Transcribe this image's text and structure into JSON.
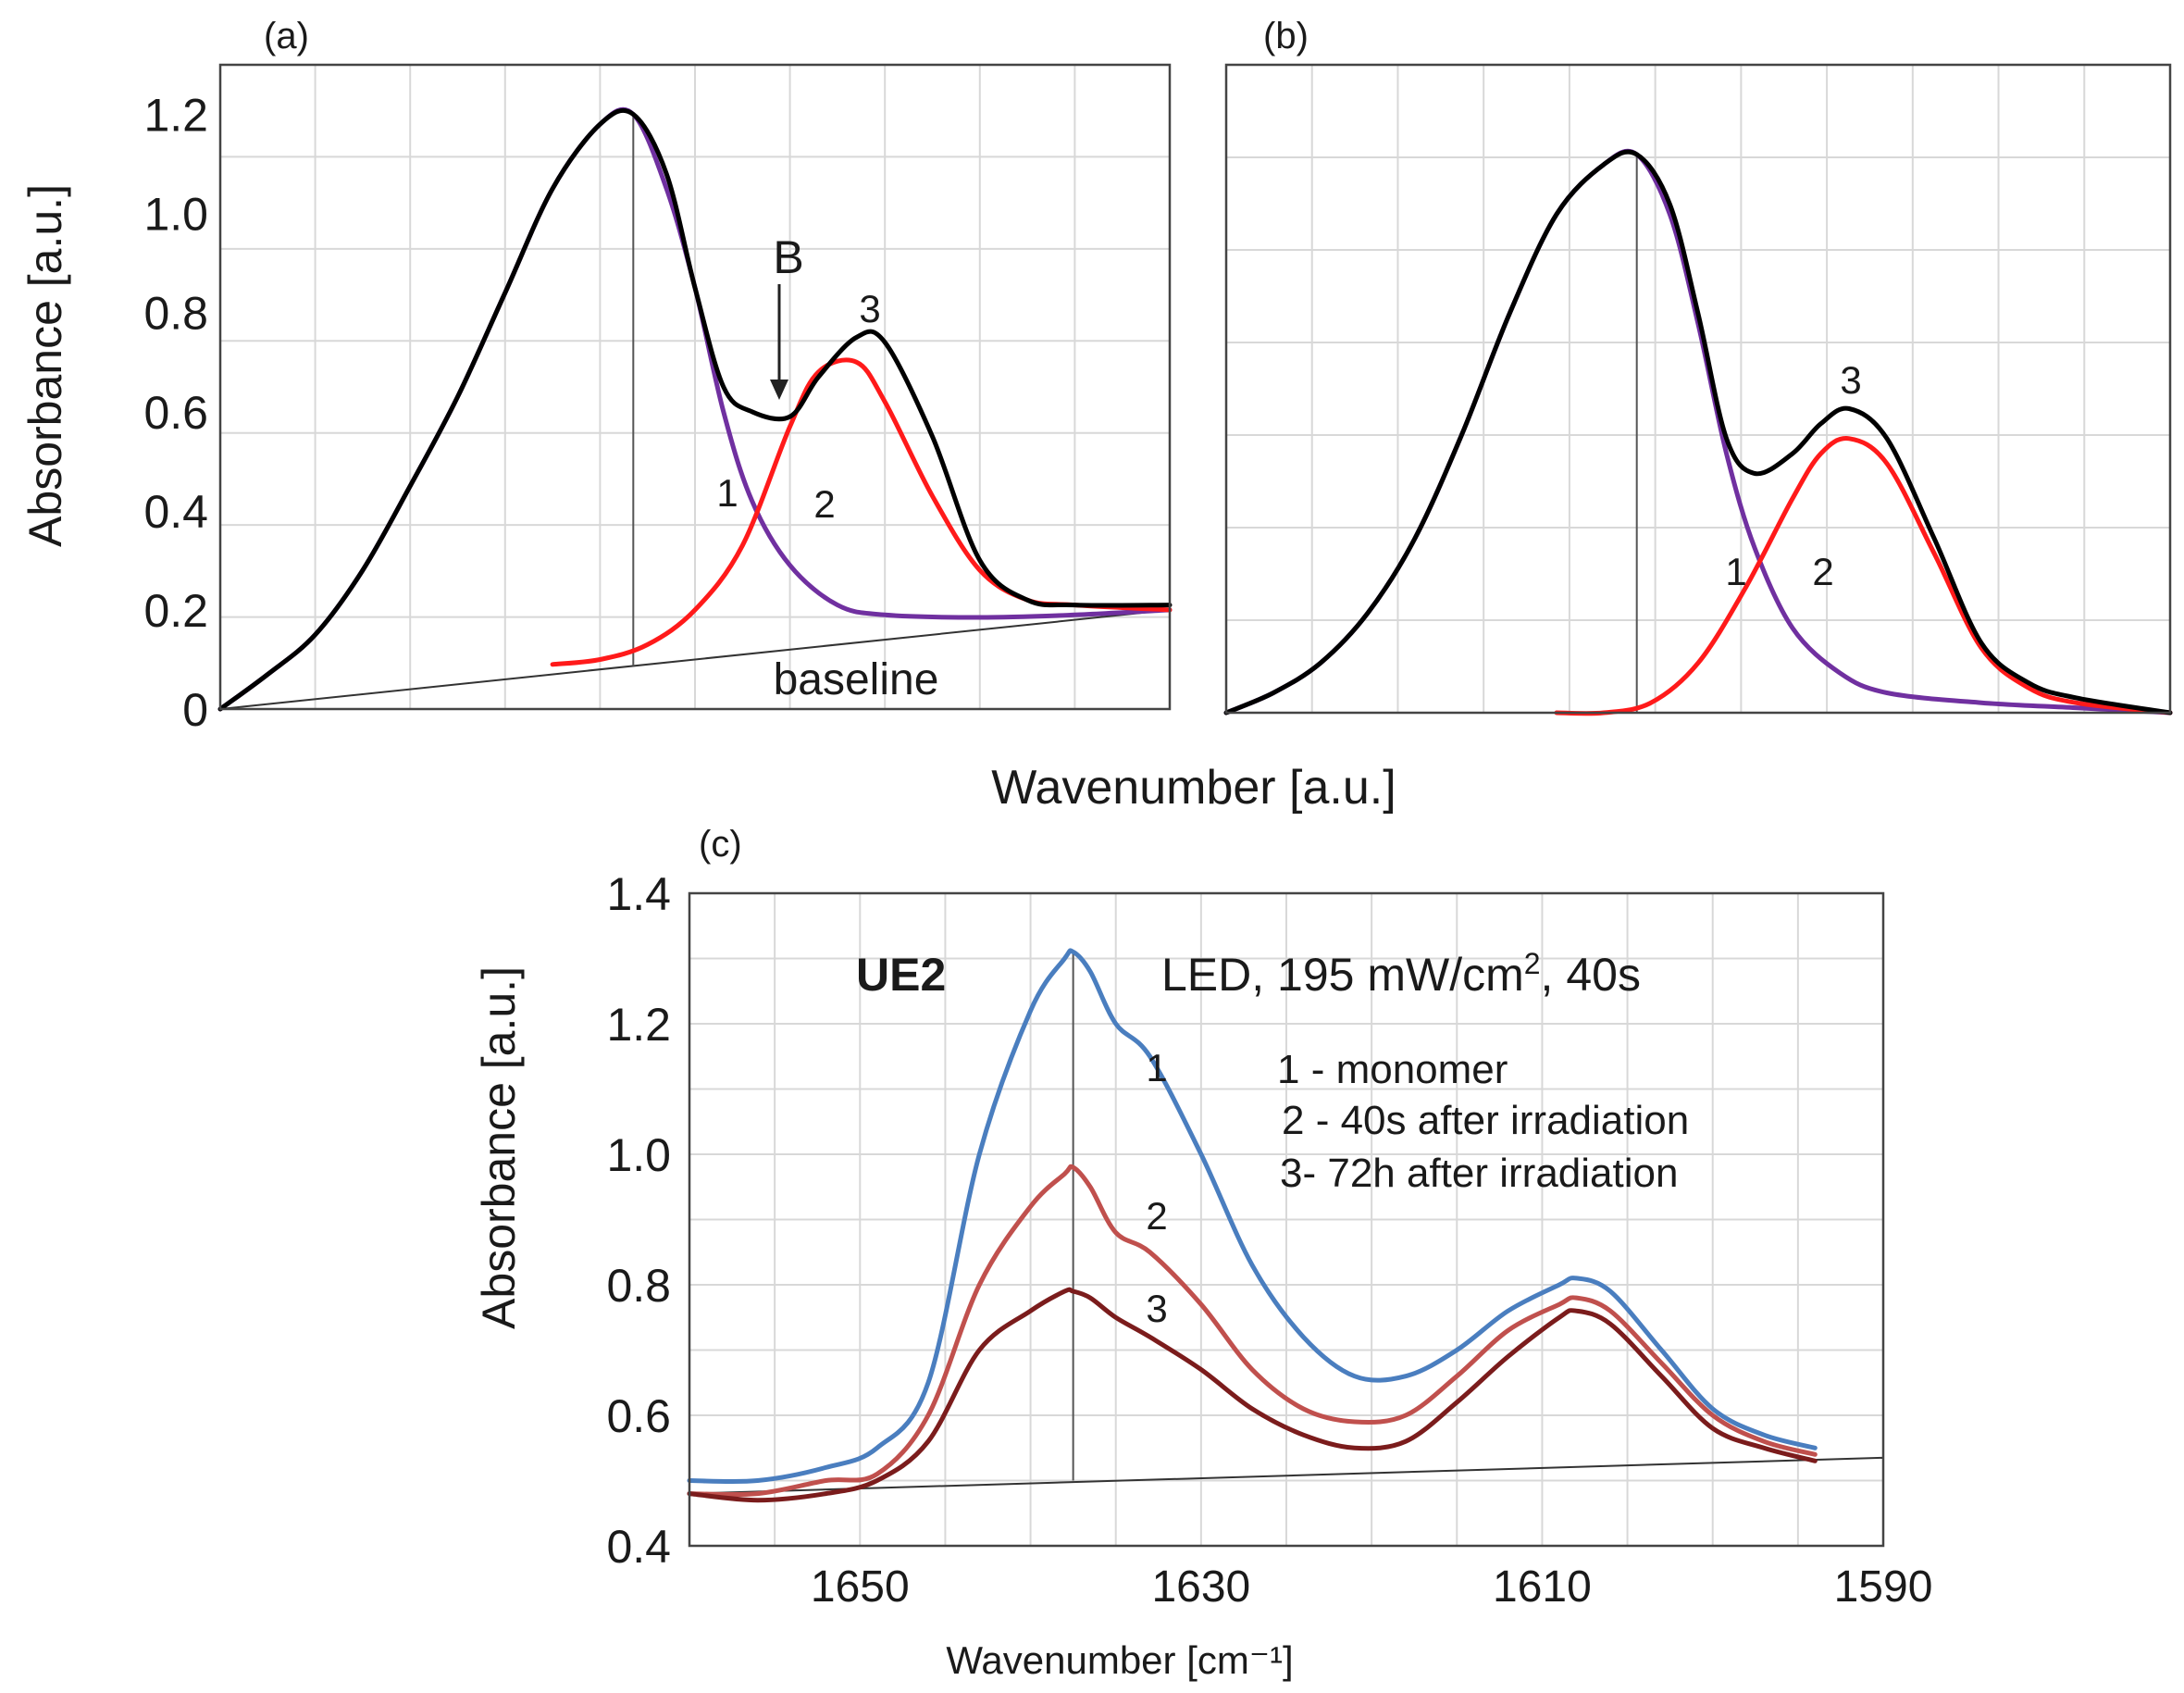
{
  "chart_data": [
    {
      "id": "a",
      "type": "line",
      "panel_label": "(a)",
      "ylabel": "Absorbance [a.u.]",
      "ylim": [
        0,
        1.3
      ],
      "xlim": [
        0,
        10
      ],
      "y_ticks": [
        "0",
        "0.2",
        "0.4",
        "0.6",
        "0.8",
        "1.0",
        "1.2"
      ],
      "y_tick_values": [
        0,
        0.2,
        0.4,
        0.6,
        0.8,
        1.0,
        1.2
      ],
      "grid": true,
      "annotations": {
        "b_label": "B",
        "baseline_label": "baseline",
        "n1": "1",
        "n2": "2",
        "n3": "3"
      },
      "peak_x": 4.35,
      "baseline": {
        "x": [
          0,
          10
        ],
        "y": [
          0,
          0.2
        ]
      },
      "series": [
        {
          "name": "1",
          "color": "#7030a0",
          "x": [
            0,
            0.5,
            1.0,
            1.5,
            2.0,
            2.5,
            3.0,
            3.5,
            4.0,
            4.35,
            4.7,
            5.0,
            5.3,
            5.6,
            6.0,
            6.5,
            7.0,
            8.0,
            9.0,
            10.0
          ],
          "y": [
            0,
            0.07,
            0.15,
            0.28,
            0.45,
            0.63,
            0.84,
            1.05,
            1.18,
            1.2,
            1.05,
            0.85,
            0.6,
            0.42,
            0.29,
            0.21,
            0.19,
            0.185,
            0.19,
            0.2
          ]
        },
        {
          "name": "2",
          "color": "#ff1a1a",
          "x": [
            3.5,
            4.0,
            4.5,
            5.0,
            5.5,
            6.0,
            6.3,
            6.7,
            7.0,
            7.5,
            8.0,
            8.5,
            9.0,
            10.0
          ],
          "y": [
            0.09,
            0.1,
            0.13,
            0.2,
            0.33,
            0.57,
            0.68,
            0.7,
            0.62,
            0.43,
            0.28,
            0.22,
            0.21,
            0.2
          ]
        },
        {
          "name": "3",
          "color": "#000000",
          "x": [
            0,
            0.5,
            1.0,
            1.5,
            2.0,
            2.5,
            3.0,
            3.5,
            4.0,
            4.35,
            4.7,
            5.0,
            5.3,
            5.6,
            6.0,
            6.3,
            6.7,
            7.0,
            7.5,
            8.0,
            8.5,
            9.0,
            10.0
          ],
          "y": [
            0,
            0.07,
            0.15,
            0.28,
            0.45,
            0.63,
            0.84,
            1.05,
            1.18,
            1.2,
            1.08,
            0.85,
            0.65,
            0.6,
            0.59,
            0.67,
            0.75,
            0.74,
            0.55,
            0.3,
            0.22,
            0.21,
            0.21
          ]
        }
      ]
    },
    {
      "id": "b",
      "type": "line",
      "panel_label": "(b)",
      "ylim": [
        0,
        1.3
      ],
      "xlim": [
        0,
        10
      ],
      "grid": true,
      "annotations": {
        "n1": "1",
        "n2": "2",
        "n3": "3"
      },
      "peak_x": 4.35,
      "series": [
        {
          "name": "1",
          "color": "#7030a0",
          "x": [
            0,
            0.5,
            1.0,
            1.5,
            2.0,
            2.5,
            3.0,
            3.5,
            4.0,
            4.35,
            4.7,
            5.0,
            5.3,
            5.6,
            6.0,
            6.5,
            7.0,
            8.0,
            9.0,
            10.0
          ],
          "y": [
            0,
            0.04,
            0.1,
            0.2,
            0.35,
            0.56,
            0.8,
            1.0,
            1.1,
            1.12,
            1.0,
            0.78,
            0.52,
            0.33,
            0.17,
            0.08,
            0.04,
            0.02,
            0.01,
            0
          ]
        },
        {
          "name": "2",
          "color": "#ff1a1a",
          "x": [
            3.5,
            4.0,
            4.5,
            5.0,
            5.5,
            6.0,
            6.3,
            6.6,
            7.0,
            7.5,
            8.0,
            8.5,
            9.0,
            10.0
          ],
          "y": [
            0,
            0,
            0.02,
            0.1,
            0.25,
            0.43,
            0.52,
            0.55,
            0.5,
            0.32,
            0.13,
            0.05,
            0.02,
            0
          ]
        },
        {
          "name": "3",
          "color": "#000000",
          "x": [
            0,
            0.5,
            1.0,
            1.5,
            2.0,
            2.5,
            3.0,
            3.5,
            4.0,
            4.35,
            4.7,
            5.0,
            5.3,
            5.6,
            6.0,
            6.3,
            6.6,
            7.0,
            7.5,
            8.0,
            8.5,
            9.0,
            10.0
          ],
          "y": [
            0,
            0.04,
            0.1,
            0.2,
            0.35,
            0.56,
            0.8,
            1.0,
            1.1,
            1.12,
            1.02,
            0.8,
            0.55,
            0.48,
            0.52,
            0.58,
            0.61,
            0.55,
            0.35,
            0.14,
            0.06,
            0.03,
            0
          ]
        }
      ]
    },
    {
      "id": "c",
      "type": "line",
      "panel_label": "(c)",
      "title": "UE2",
      "condition_prefix": "LED, 195 mW/cm",
      "condition_sup": "2",
      "condition_suffix": ", 40s",
      "ylabel": "Absorbance [a.u.]",
      "xlabel": "Wavenumber [cm⁻¹]",
      "ylim": [
        0.4,
        1.4
      ],
      "xlim": [
        1660,
        1590
      ],
      "y_ticks": [
        "0.4",
        "0.6",
        "0.8",
        "1.0",
        "1.2",
        "1.4"
      ],
      "y_tick_values": [
        0.4,
        0.6,
        0.8,
        1.0,
        1.2,
        1.4
      ],
      "x_ticks": [
        "1650",
        "1630",
        "1610",
        "1590"
      ],
      "x_tick_values": [
        1650,
        1630,
        1610,
        1590
      ],
      "grid": true,
      "legend": [
        "1 - monomer",
        "2 - 40s after irradiation",
        "3- 72h after irradiation"
      ],
      "annotations": {
        "n1": "1",
        "n2": "2",
        "n3": "3"
      },
      "peak_x": 1637.5,
      "baseline": {
        "x": [
          1660,
          1590
        ],
        "y": [
          0.48,
          0.535
        ]
      },
      "series": [
        {
          "name": "1",
          "color": "#4a7ebf",
          "x": [
            1660,
            1656,
            1652,
            1649,
            1646,
            1643,
            1640,
            1638,
            1637.5,
            1636.5,
            1635,
            1633,
            1630,
            1627,
            1624,
            1621,
            1618,
            1615,
            1612,
            1609,
            1608,
            1606,
            1603,
            1600,
            1597,
            1594
          ],
          "y": [
            0.5,
            0.5,
            0.52,
            0.55,
            0.65,
            1.0,
            1.22,
            1.3,
            1.31,
            1.28,
            1.2,
            1.15,
            1.0,
            0.83,
            0.72,
            0.66,
            0.66,
            0.7,
            0.76,
            0.8,
            0.81,
            0.79,
            0.7,
            0.61,
            0.57,
            0.55
          ]
        },
        {
          "name": "2",
          "color": "#c0504d",
          "x": [
            1660,
            1656,
            1652,
            1649,
            1646,
            1643,
            1640,
            1638,
            1637.5,
            1636.5,
            1635,
            1633,
            1630,
            1627,
            1624,
            1621,
            1618,
            1615,
            1612,
            1609,
            1608,
            1606,
            1603,
            1600,
            1597,
            1594
          ],
          "y": [
            0.48,
            0.48,
            0.5,
            0.51,
            0.6,
            0.8,
            0.92,
            0.97,
            0.98,
            0.95,
            0.88,
            0.85,
            0.77,
            0.67,
            0.61,
            0.59,
            0.6,
            0.66,
            0.73,
            0.77,
            0.78,
            0.76,
            0.68,
            0.6,
            0.56,
            0.54
          ]
        },
        {
          "name": "3",
          "color": "#7b1c1c",
          "x": [
            1660,
            1656,
            1652,
            1649,
            1646,
            1643,
            1640,
            1638,
            1637.5,
            1636.5,
            1635,
            1633,
            1630,
            1627,
            1624,
            1621,
            1618,
            1615,
            1612,
            1609,
            1608,
            1606,
            1603,
            1600,
            1597,
            1594
          ],
          "y": [
            0.48,
            0.47,
            0.48,
            0.5,
            0.56,
            0.7,
            0.76,
            0.79,
            0.79,
            0.78,
            0.75,
            0.72,
            0.67,
            0.61,
            0.57,
            0.55,
            0.56,
            0.62,
            0.69,
            0.75,
            0.76,
            0.74,
            0.66,
            0.58,
            0.55,
            0.53
          ]
        }
      ]
    }
  ],
  "shared": {
    "wavenumber_label": "Wavenumber [a.u.]"
  }
}
